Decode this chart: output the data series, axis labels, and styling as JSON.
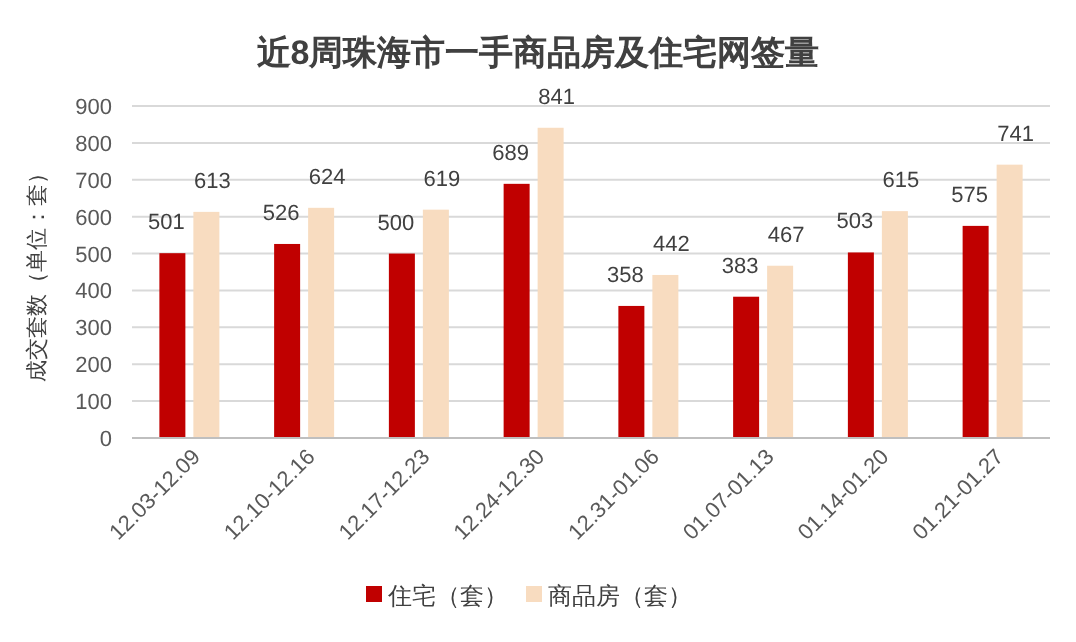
{
  "chart_data": {
    "type": "bar",
    "title": "近8周珠海市一手商品房及住宅网签量",
    "ylabel": "成交套数（单位：套）",
    "categories": [
      "12.03-12.09",
      "12.10-12.16",
      "12.17-12.23",
      "12.24-12.30",
      "12.31-01.06",
      "01.07-01.13",
      "01.14-01.20",
      "01.21-01.27"
    ],
    "series": [
      {
        "name": "住宅（套）",
        "color": "#c00000",
        "values": [
          501,
          526,
          500,
          689,
          358,
          383,
          503,
          575
        ]
      },
      {
        "name": "商品房（套）",
        "color": "#f8dcc0",
        "values": [
          613,
          624,
          619,
          841,
          442,
          467,
          615,
          741
        ]
      }
    ],
    "ylim": [
      0,
      900
    ],
    "yticks": [
      0,
      100,
      200,
      300,
      400,
      500,
      600,
      700,
      800,
      900
    ],
    "grid": "y",
    "legend": "bottom",
    "data_labels": true
  }
}
